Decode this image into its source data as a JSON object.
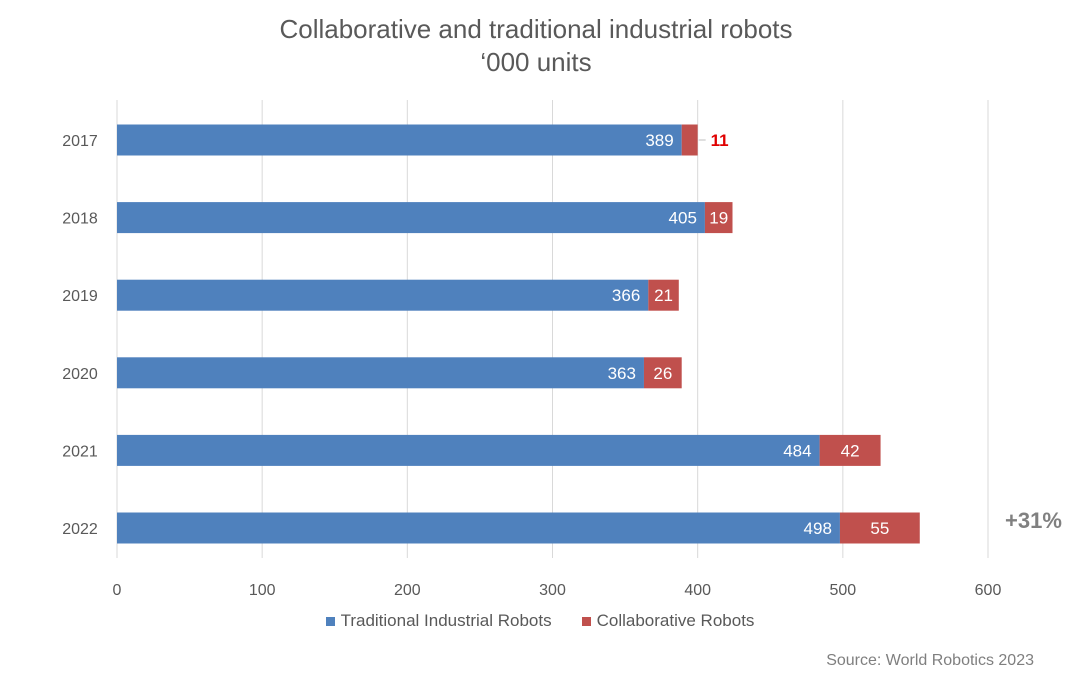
{
  "chart_data": {
    "type": "bar",
    "orientation": "horizontal",
    "stacked": true,
    "title": "Collaborative and traditional industrial robots",
    "subtitle": "‘000 units",
    "categories": [
      "2017",
      "2018",
      "2019",
      "2020",
      "2021",
      "2022"
    ],
    "series": [
      {
        "name": "Traditional Industrial Robots",
        "values": [
          389,
          405,
          366,
          363,
          484,
          498
        ],
        "color": "#4f81bd"
      },
      {
        "name": "Collaborative Robots",
        "values": [
          11,
          19,
          21,
          26,
          42,
          55
        ],
        "color": "#c0504d"
      }
    ],
    "xlim": [
      0,
      600
    ],
    "xticks": [
      0,
      100,
      200,
      300,
      400,
      500,
      600
    ],
    "grid": "vertical",
    "legend": "bottom",
    "annotation": "+31%",
    "source": "Source: World Robotics 2023"
  }
}
